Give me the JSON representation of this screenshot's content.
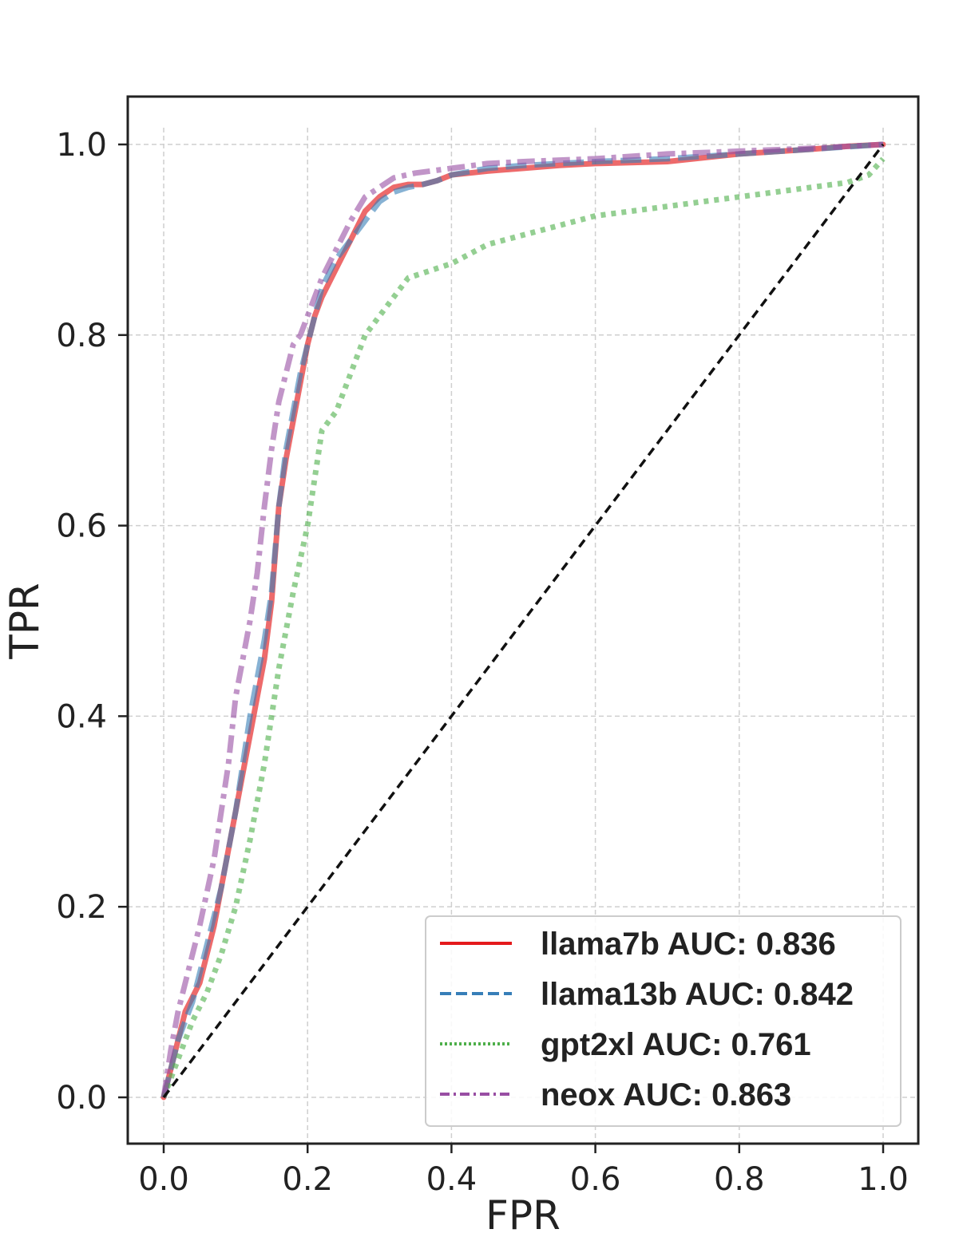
{
  "chart_data": {
    "type": "line",
    "title": "",
    "xlabel": "FPR",
    "ylabel": "TPR",
    "xlim": [
      -0.05,
      1.05
    ],
    "ylim": [
      -0.05,
      1.05
    ],
    "grid": true,
    "legend_position": "lower-right",
    "x_ticks": [
      0.0,
      0.2,
      0.4,
      0.6,
      0.8,
      1.0
    ],
    "x_tick_labels": [
      "0.0",
      "0.2",
      "0.4",
      "0.6",
      "0.8",
      "1.0"
    ],
    "y_ticks": [
      0.0,
      0.2,
      0.4,
      0.6,
      0.8,
      1.0
    ],
    "y_tick_labels": [
      "0.0",
      "0.2",
      "0.4",
      "0.6",
      "0.8",
      "1.0"
    ],
    "series": [
      {
        "name": "llama7b",
        "legend_label": "llama7b AUC: 0.836",
        "auc": 0.836,
        "color": "#e41a1c",
        "style": "solid",
        "x": [
          0,
          0.01,
          0.02,
          0.03,
          0.05,
          0.07,
          0.08,
          0.1,
          0.12,
          0.14,
          0.15,
          0.16,
          0.17,
          0.18,
          0.19,
          0.2,
          0.21,
          0.22,
          0.24,
          0.26,
          0.28,
          0.3,
          0.32,
          0.34,
          0.36,
          0.38,
          0.4,
          0.45,
          0.5,
          0.55,
          0.6,
          0.7,
          0.8,
          0.9,
          0.95,
          1.0
        ],
        "y": [
          0,
          0.03,
          0.06,
          0.09,
          0.12,
          0.18,
          0.22,
          0.3,
          0.38,
          0.46,
          0.52,
          0.62,
          0.67,
          0.71,
          0.75,
          0.79,
          0.82,
          0.84,
          0.87,
          0.9,
          0.93,
          0.945,
          0.955,
          0.958,
          0.958,
          0.962,
          0.968,
          0.972,
          0.975,
          0.978,
          0.98,
          0.982,
          0.99,
          0.995,
          0.998,
          1.0
        ]
      },
      {
        "name": "llama13b",
        "legend_label": "llama13b AUC: 0.842",
        "auc": 0.842,
        "color": "#377eb8",
        "style": "dashed",
        "x": [
          0,
          0.01,
          0.02,
          0.04,
          0.06,
          0.08,
          0.1,
          0.12,
          0.14,
          0.15,
          0.16,
          0.17,
          0.18,
          0.19,
          0.2,
          0.21,
          0.22,
          0.24,
          0.26,
          0.28,
          0.3,
          0.32,
          0.34,
          0.36,
          0.38,
          0.4,
          0.45,
          0.5,
          0.6,
          0.7,
          0.8,
          0.9,
          1.0
        ],
        "y": [
          0,
          0.03,
          0.06,
          0.1,
          0.16,
          0.22,
          0.3,
          0.4,
          0.48,
          0.53,
          0.62,
          0.68,
          0.72,
          0.76,
          0.79,
          0.82,
          0.85,
          0.88,
          0.9,
          0.92,
          0.94,
          0.95,
          0.955,
          0.958,
          0.962,
          0.968,
          0.975,
          0.978,
          0.982,
          0.985,
          0.99,
          0.995,
          1.0
        ]
      },
      {
        "name": "gpt2xl",
        "legend_label": "gpt2xl AUC: 0.761",
        "auc": 0.761,
        "color": "#4daf4a",
        "style": "dotted",
        "x": [
          0,
          0.02,
          0.04,
          0.06,
          0.08,
          0.1,
          0.12,
          0.14,
          0.16,
          0.18,
          0.2,
          0.22,
          0.24,
          0.26,
          0.28,
          0.3,
          0.32,
          0.34,
          0.36,
          0.38,
          0.4,
          0.45,
          0.5,
          0.55,
          0.6,
          0.65,
          0.7,
          0.75,
          0.8,
          0.85,
          0.9,
          0.95,
          0.98,
          1.0
        ],
        "y": [
          0,
          0.04,
          0.08,
          0.11,
          0.15,
          0.2,
          0.27,
          0.35,
          0.45,
          0.53,
          0.6,
          0.7,
          0.72,
          0.76,
          0.8,
          0.82,
          0.84,
          0.86,
          0.865,
          0.87,
          0.875,
          0.895,
          0.905,
          0.915,
          0.925,
          0.93,
          0.935,
          0.94,
          0.945,
          0.95,
          0.955,
          0.96,
          0.968,
          0.985
        ]
      },
      {
        "name": "neox",
        "legend_label": "neox AUC: 0.863",
        "auc": 0.863,
        "color": "#984ea3",
        "style": "dashdot",
        "x": [
          0,
          0.01,
          0.02,
          0.03,
          0.05,
          0.07,
          0.09,
          0.1,
          0.11,
          0.12,
          0.13,
          0.14,
          0.15,
          0.16,
          0.17,
          0.18,
          0.19,
          0.2,
          0.21,
          0.22,
          0.24,
          0.26,
          0.28,
          0.3,
          0.32,
          0.35,
          0.4,
          0.45,
          0.5,
          0.6,
          0.7,
          0.8,
          0.9,
          1.0
        ],
        "y": [
          0,
          0.05,
          0.09,
          0.12,
          0.18,
          0.25,
          0.35,
          0.42,
          0.46,
          0.5,
          0.55,
          0.62,
          0.68,
          0.73,
          0.76,
          0.79,
          0.8,
          0.82,
          0.84,
          0.86,
          0.89,
          0.92,
          0.945,
          0.955,
          0.965,
          0.97,
          0.975,
          0.98,
          0.982,
          0.985,
          0.99,
          0.993,
          0.996,
          1.0
        ]
      },
      {
        "name": "chance",
        "legend_label": "",
        "color": "#111111",
        "style": "dashed-black",
        "x": [
          0,
          1
        ],
        "y": [
          0,
          1
        ]
      }
    ]
  }
}
